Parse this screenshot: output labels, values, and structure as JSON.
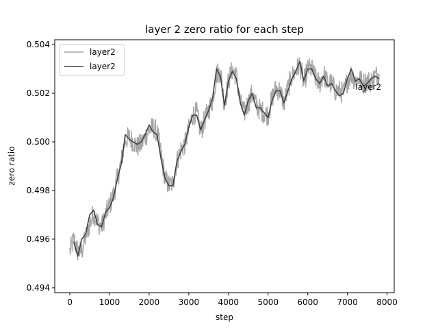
{
  "chart_data": {
    "type": "line",
    "title": "layer 2 zero ratio for each step",
    "xlabel": "step",
    "ylabel": "zero ratio",
    "xlim": [
      -380,
      8180
    ],
    "ylim": [
      0.4938,
      0.5042
    ],
    "xticks": [
      0,
      1000,
      2000,
      3000,
      4000,
      5000,
      6000,
      7000,
      8000
    ],
    "yticks": [
      0.494,
      0.496,
      0.498,
      0.5,
      0.502,
      0.504
    ],
    "ytick_labels": [
      "0.494",
      "0.496",
      "0.498",
      "0.500",
      "0.502",
      "0.504"
    ],
    "legend": {
      "placement": "top-left"
    },
    "grid": false,
    "series": [
      {
        "name": "layer2",
        "color": "#a6a6a6",
        "style": "raw-noisy",
        "x": [
          0,
          100,
          200,
          300,
          400,
          500,
          600,
          700,
          800,
          900,
          1000,
          1100,
          1200,
          1300,
          1400,
          1500,
          1600,
          1700,
          1800,
          1900,
          2000,
          2100,
          2200,
          2300,
          2400,
          2500,
          2600,
          2700,
          2800,
          2900,
          3000,
          3100,
          3200,
          3300,
          3400,
          3500,
          3600,
          3700,
          3800,
          3900,
          4000,
          4100,
          4200,
          4300,
          4400,
          4500,
          4600,
          4700,
          4800,
          4900,
          5000,
          5100,
          5200,
          5300,
          5400,
          5500,
          5600,
          5700,
          5800,
          5900,
          6000,
          6100,
          6200,
          6300,
          6400,
          6500,
          6600,
          6700,
          6800,
          6900,
          7000,
          7100,
          7200,
          7300,
          7400,
          7500,
          7600,
          7700,
          7800
        ],
        "values": [
          0.4955,
          0.496,
          0.4955,
          0.4955,
          0.4961,
          0.4966,
          0.4971,
          0.4967,
          0.4965,
          0.497,
          0.4974,
          0.4978,
          0.4985,
          0.4992,
          0.5001,
          0.5002,
          0.5,
          0.4998,
          0.4999,
          0.5002,
          0.5005,
          0.5006,
          0.5004,
          0.4995,
          0.4985,
          0.4982,
          0.4983,
          0.4992,
          0.4997,
          0.4999,
          0.5005,
          0.5011,
          0.5012,
          0.5004,
          0.5009,
          0.5013,
          0.5017,
          0.5028,
          0.5029,
          0.5015,
          0.5025,
          0.503,
          0.5027,
          0.5016,
          0.5012,
          0.5016,
          0.502,
          0.5015,
          0.5013,
          0.5012,
          0.5011,
          0.5018,
          0.5022,
          0.5021,
          0.5016,
          0.5022,
          0.5027,
          0.5029,
          0.5032,
          0.5024,
          0.503,
          0.503,
          0.5026,
          0.5024,
          0.5028,
          0.5024,
          0.5024,
          0.5021,
          0.5021,
          0.502,
          0.5025,
          0.5028,
          0.5025,
          0.5026,
          0.5024,
          0.5025,
          0.5025,
          0.5027,
          0.5028
        ],
        "noise": 0.00045
      },
      {
        "name": "layer2",
        "color": "#404040",
        "style": "smoothed",
        "x": [
          100,
          200,
          300,
          400,
          500,
          600,
          700,
          800,
          900,
          1000,
          1100,
          1200,
          1300,
          1400,
          1500,
          1600,
          1700,
          1800,
          1900,
          2000,
          2100,
          2200,
          2300,
          2400,
          2500,
          2600,
          2700,
          2800,
          2900,
          3000,
          3100,
          3200,
          3300,
          3400,
          3500,
          3600,
          3700,
          3800,
          3900,
          4000,
          4100,
          4200,
          4300,
          4400,
          4500,
          4600,
          4700,
          4800,
          4900,
          5000,
          5100,
          5200,
          5300,
          5400,
          5500,
          5600,
          5700,
          5800,
          5900,
          6000,
          6100,
          6200,
          6300,
          6400,
          6500,
          6600,
          6700,
          6800,
          6900,
          7000,
          7100,
          7200,
          7300,
          7400,
          7500,
          7600,
          7700,
          7800
        ],
        "values": [
          0.4959,
          0.4953,
          0.496,
          0.4962,
          0.497,
          0.4972,
          0.4966,
          0.4965,
          0.4971,
          0.4973,
          0.4977,
          0.4985,
          0.4991,
          0.5003,
          0.5001,
          0.5,
          0.4999,
          0.5,
          0.5003,
          0.5007,
          0.5004,
          0.5003,
          0.4993,
          0.4985,
          0.4982,
          0.4982,
          0.4992,
          0.4996,
          0.4999,
          0.5006,
          0.5011,
          0.5011,
          0.5005,
          0.5009,
          0.5013,
          0.5018,
          0.503,
          0.5027,
          0.5015,
          0.5025,
          0.5029,
          0.5026,
          0.5016,
          0.5011,
          0.5017,
          0.502,
          0.5014,
          0.5014,
          0.5012,
          0.501,
          0.5017,
          0.5021,
          0.5021,
          0.5016,
          0.5021,
          0.5026,
          0.5029,
          0.5033,
          0.5025,
          0.503,
          0.503,
          0.5026,
          0.5024,
          0.5027,
          0.5023,
          0.5024,
          0.5021,
          0.5019,
          0.502,
          0.5026,
          0.503,
          0.5025,
          0.5026,
          0.5023,
          0.5024,
          0.5026,
          0.5027,
          0.5026
        ]
      }
    ],
    "annotations": [
      {
        "text": "layer2",
        "x": 7530,
        "y": 0.50225
      }
    ]
  }
}
